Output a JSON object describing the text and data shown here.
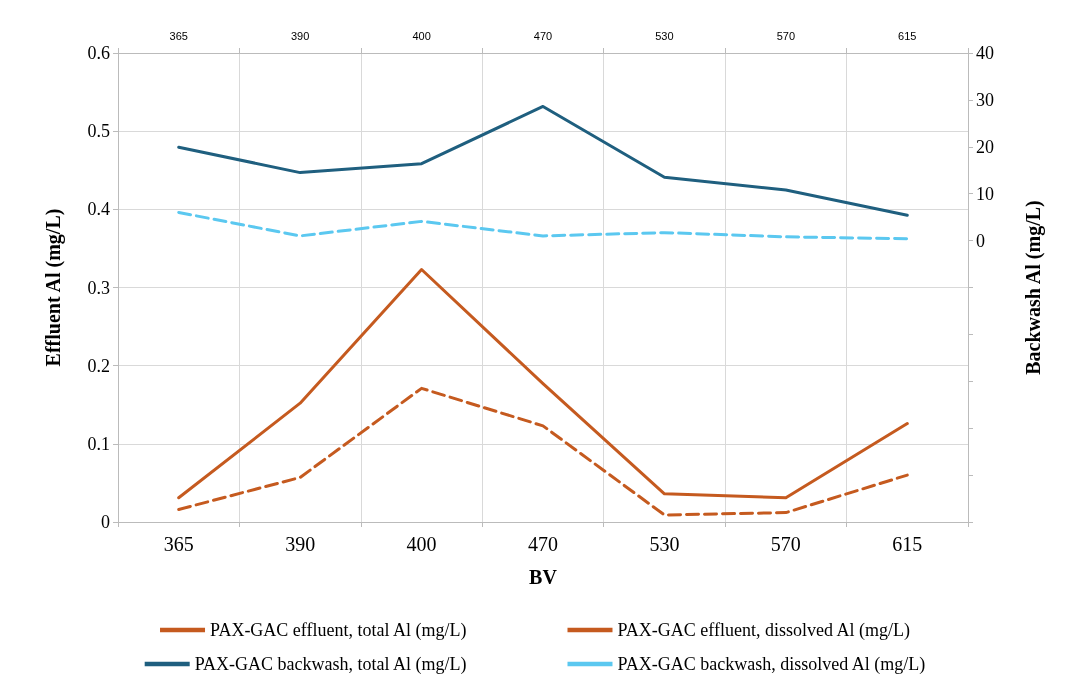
{
  "chart_data": {
    "type": "line",
    "xlabel": "BV",
    "ylabel": "Effluent Al (mg/L)",
    "y2label": "Backwash Al (mg/L)",
    "categories": [
      "365",
      "390",
      "400",
      "470",
      "530",
      "570",
      "615"
    ],
    "ylim": [
      0,
      0.6
    ],
    "yticks": [
      0,
      0.1,
      0.2,
      0.3,
      0.4,
      0.5,
      0.6
    ],
    "y2lim": [
      -60,
      40
    ],
    "y2ticks": [
      {
        "value": -60,
        "label": null
      },
      {
        "value": -50,
        "label": null
      },
      {
        "value": -40,
        "label": null
      },
      {
        "value": -30,
        "label": null
      },
      {
        "value": -20,
        "label": null
      },
      {
        "value": -10,
        "label": null
      },
      0,
      10,
      20,
      30,
      40
    ],
    "grid": true,
    "legend": "bottom",
    "marker": "none",
    "series": [
      {
        "name": "PAX-GAC effluent, total Al (mg/L)",
        "color": "#c55a1f",
        "line_style": "solid",
        "values": [
          0.031,
          0.152,
          0.323,
          0.177,
          0.036,
          0.031,
          0.126
        ]
      },
      {
        "name": "PAX-GAC effluent, dissolved Al (mg/L)",
        "color": "#c55a1f",
        "line_style": "dashed",
        "values": [
          0.016,
          0.057,
          0.171,
          0.123,
          0.009,
          0.012,
          0.06
        ]
      },
      {
        "name": "PAX-GAC backwash, total Al (mg/L)",
        "color": "#1f5f7f",
        "line_style": "solid",
        "axis": "y2",
        "values": [
          19.9,
          14.5,
          16.4,
          28.6,
          13.5,
          10.8,
          5.4
        ]
      },
      {
        "name": "PAX-GAC backwash, dissolved Al (mg/L)",
        "color": "#5bc8f0",
        "line_style": "dashed",
        "axis": "y2",
        "values": [
          6.0,
          1.0,
          4.1,
          1.0,
          1.7,
          0.8,
          0.4
        ]
      }
    ]
  }
}
